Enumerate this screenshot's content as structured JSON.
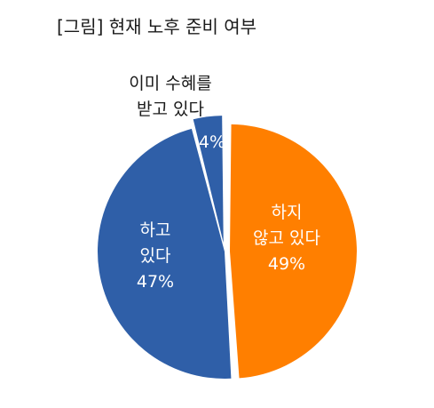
{
  "title": "[그림] 현재 노후 준비 여부",
  "chart_data": {
    "type": "pie",
    "title": "[그림] 현재 노후 준비 여부",
    "slices": [
      {
        "label": [
          "하지",
          "않고 있다"
        ],
        "value": 49,
        "value_label": "49%",
        "color": "#ff7f00"
      },
      {
        "label": [
          "하고",
          "있다"
        ],
        "value": 47,
        "value_label": "47%",
        "color": "#2f5fa8"
      },
      {
        "label": [
          "이미 수혜를",
          "받고 있다"
        ],
        "value": 4,
        "value_label": "4%",
        "color": "#2f5fa8"
      }
    ]
  }
}
